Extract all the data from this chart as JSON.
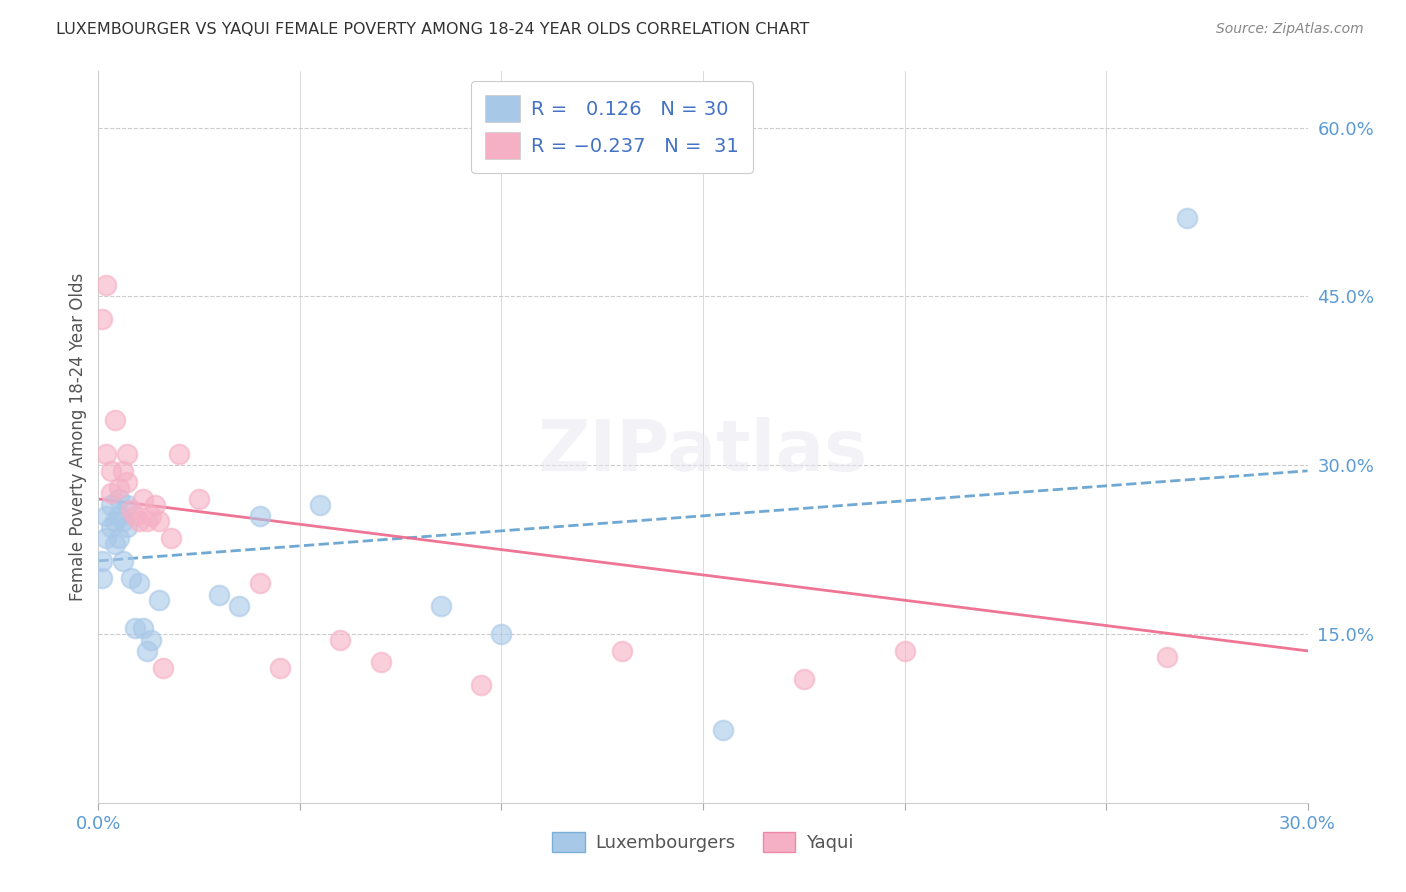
{
  "title": "LUXEMBOURGER VS YAQUI FEMALE POVERTY AMONG 18-24 YEAR OLDS CORRELATION CHART",
  "source": "Source: ZipAtlas.com",
  "ylabel": "Female Poverty Among 18-24 Year Olds",
  "xlim": [
    0.0,
    0.3
  ],
  "ylim": [
    0.0,
    0.65
  ],
  "xticks": [
    0.0,
    0.05,
    0.1,
    0.15,
    0.2,
    0.25,
    0.3
  ],
  "xtick_labels": [
    "0.0%",
    "",
    "",
    "",
    "",
    "",
    "30.0%"
  ],
  "ytick_labels_right": [
    "60.0%",
    "45.0%",
    "30.0%",
    "15.0%"
  ],
  "yticks_right": [
    0.6,
    0.45,
    0.3,
    0.15
  ],
  "lux_color": "#a8c8e8",
  "yaqui_color": "#f5b0c5",
  "lux_line_color": "#5599cc",
  "yaqui_line_color": "#ee6688",
  "background_color": "#ffffff",
  "grid_color": "#cccccc",
  "lux_R": 0.126,
  "lux_N": 30,
  "yaqui_R": -0.237,
  "yaqui_N": 31,
  "lux_x": [
    0.001,
    0.001,
    0.002,
    0.002,
    0.003,
    0.003,
    0.004,
    0.004,
    0.005,
    0.005,
    0.005,
    0.006,
    0.006,
    0.007,
    0.007,
    0.008,
    0.009,
    0.01,
    0.011,
    0.012,
    0.013,
    0.015,
    0.03,
    0.035,
    0.04,
    0.055,
    0.085,
    0.1,
    0.155,
    0.27
  ],
  "lux_y": [
    0.2,
    0.215,
    0.235,
    0.255,
    0.245,
    0.265,
    0.23,
    0.25,
    0.235,
    0.255,
    0.27,
    0.215,
    0.25,
    0.245,
    0.265,
    0.2,
    0.155,
    0.195,
    0.155,
    0.135,
    0.145,
    0.18,
    0.185,
    0.175,
    0.255,
    0.265,
    0.175,
    0.15,
    0.065,
    0.52
  ],
  "yaqui_x": [
    0.001,
    0.002,
    0.002,
    0.003,
    0.003,
    0.004,
    0.005,
    0.006,
    0.007,
    0.007,
    0.008,
    0.009,
    0.01,
    0.011,
    0.012,
    0.013,
    0.014,
    0.015,
    0.016,
    0.018,
    0.02,
    0.025,
    0.04,
    0.045,
    0.06,
    0.07,
    0.095,
    0.13,
    0.175,
    0.2,
    0.265
  ],
  "yaqui_y": [
    0.43,
    0.46,
    0.31,
    0.295,
    0.275,
    0.34,
    0.28,
    0.295,
    0.31,
    0.285,
    0.26,
    0.255,
    0.25,
    0.27,
    0.25,
    0.255,
    0.265,
    0.25,
    0.12,
    0.235,
    0.31,
    0.27,
    0.195,
    0.12,
    0.145,
    0.125,
    0.105,
    0.135,
    0.11,
    0.135,
    0.13
  ],
  "lux_trendline_x": [
    0.0,
    0.3
  ],
  "lux_trendline_y": [
    0.215,
    0.295
  ],
  "yaqui_trendline_x": [
    0.0,
    0.3
  ],
  "yaqui_trendline_y": [
    0.27,
    0.135
  ]
}
